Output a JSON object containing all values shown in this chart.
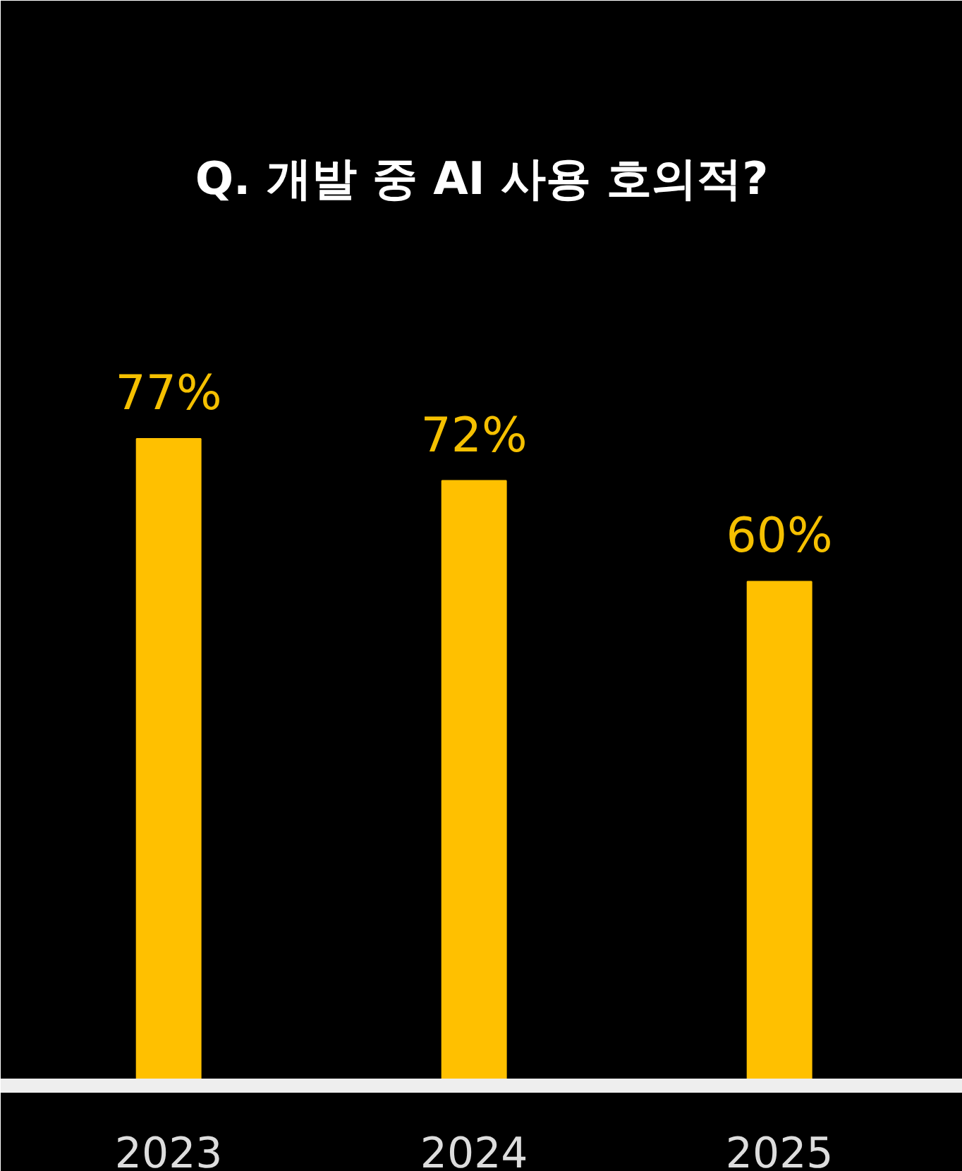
{
  "chart_data": {
    "type": "bar",
    "title": "Q. 개발 중 AI 사용 호의적?",
    "categories": [
      "2023",
      "2024",
      "2025"
    ],
    "values": [
      77,
      72,
      60
    ],
    "color": "#ffc000",
    "data_labels": true,
    "value_labels": [
      "77%",
      "72%",
      "60%"
    ],
    "grid": false
  }
}
